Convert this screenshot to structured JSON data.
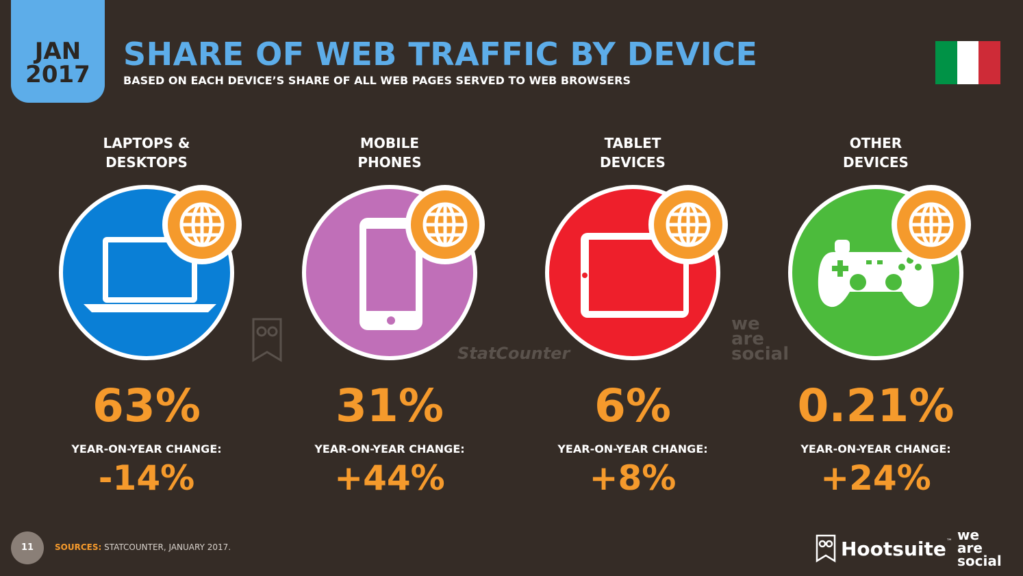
{
  "header": {
    "date_month": "JAN",
    "date_year": "2017",
    "title": "SHARE OF WEB TRAFFIC BY DEVICE",
    "subtitle": "BASED ON EACH DEVICE’S SHARE OF ALL WEB PAGES SERVED TO WEB BROWSERS",
    "flag_colors": [
      "#009246",
      "#ffffff",
      "#ce2b37"
    ]
  },
  "devices": [
    {
      "label": "LAPTOPS &\nDESKTOPS",
      "icon": "laptop-icon",
      "color": "#0a7fd6",
      "share": "63%",
      "yoy_label": "YEAR-ON-YEAR CHANGE:",
      "yoy": "-14%"
    },
    {
      "label": "MOBILE\nPHONES",
      "icon": "mobile-phone-icon",
      "color": "#c06fb8",
      "share": "31%",
      "yoy_label": "YEAR-ON-YEAR CHANGE:",
      "yoy": "+44%"
    },
    {
      "label": "TABLET\nDEVICES",
      "icon": "tablet-icon",
      "color": "#ee1f2b",
      "share": "6%",
      "yoy_label": "YEAR-ON-YEAR CHANGE:",
      "yoy": "+8%"
    },
    {
      "label": "OTHER\nDEVICES",
      "icon": "gamepad-icon",
      "color": "#4cbb3c",
      "share": "0.21%",
      "yoy_label": "YEAR-ON-YEAR CHANGE:",
      "yoy": "+24%"
    }
  ],
  "watermarks": {
    "statcounter": "StatCounter",
    "we": "we",
    "are": "are",
    "social": "social"
  },
  "footer": {
    "page_number": "11",
    "sources_label": "SOURCES:",
    "sources_text": "STATCOUNTER, JANUARY 2017.",
    "hootsuite": "Hootsuite",
    "hootsuite_tm": "™",
    "was_we": "we",
    "was_are": "are",
    "was_social": "social"
  },
  "accent_colors": {
    "orange": "#f59a2c",
    "blue": "#5dade9",
    "background": "#352c26"
  }
}
